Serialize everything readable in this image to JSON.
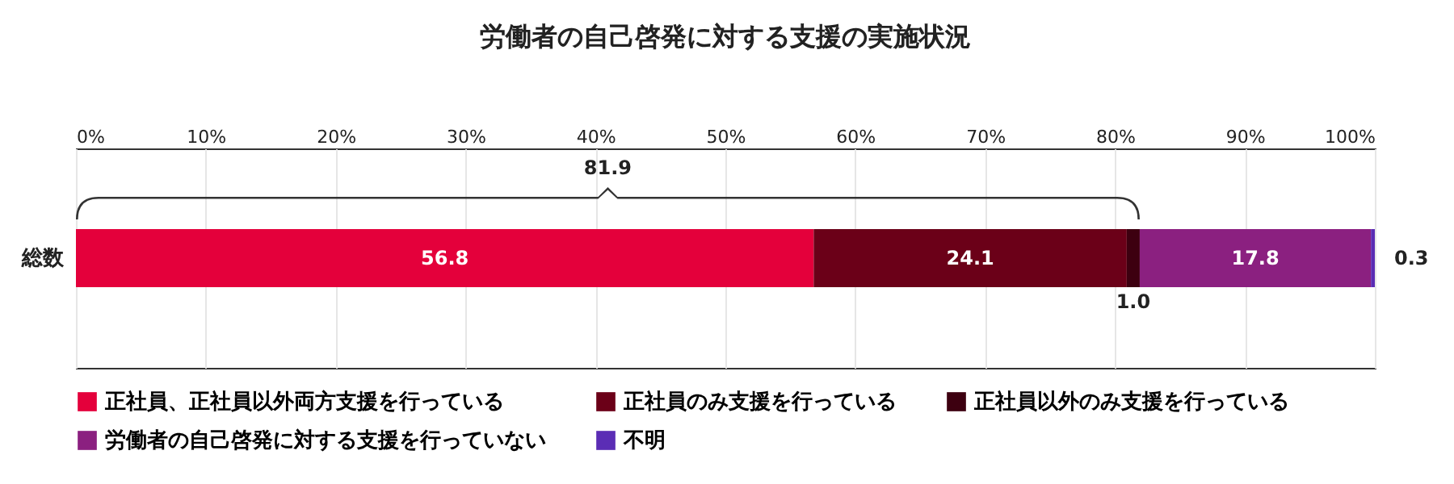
{
  "chart_data": {
    "type": "bar",
    "title": "労働者の自己啓発に対する支援の実施状況",
    "orientation": "horizontal",
    "stacked": true,
    "categories": [
      "総数"
    ],
    "series": [
      {
        "name": "正社員、正社員以外両方支援を行っている",
        "color": "#e4003b",
        "values": [
          56.8
        ],
        "value_labels": [
          "56.8"
        ]
      },
      {
        "name": "正社員のみ支援を行っている",
        "color": "#6b0018",
        "values": [
          24.1
        ],
        "value_labels": [
          "24.1"
        ]
      },
      {
        "name": "正社員以外のみ支援を行っている",
        "color": "#3d0010",
        "values": [
          1.0
        ],
        "value_labels": [
          "1.0"
        ]
      },
      {
        "name": "労働者の自己啓発に対する支援を行っていない",
        "color": "#8b2080",
        "values": [
          17.8
        ],
        "value_labels": [
          "17.8"
        ]
      },
      {
        "name": "不明",
        "color": "#5b2db5",
        "values": [
          0.3
        ],
        "value_labels": [
          "0.3"
        ]
      }
    ],
    "xlim": [
      0,
      100
    ],
    "xticks": [
      {
        "value": 0,
        "label": "0%"
      },
      {
        "value": 10,
        "label": "10%"
      },
      {
        "value": 20,
        "label": "20%"
      },
      {
        "value": 30,
        "label": "30%"
      },
      {
        "value": 40,
        "label": "40%"
      },
      {
        "value": 50,
        "label": "50%"
      },
      {
        "value": 60,
        "label": "60%"
      },
      {
        "value": 70,
        "label": "70%"
      },
      {
        "value": 80,
        "label": "80%"
      },
      {
        "value": 90,
        "label": "90%"
      },
      {
        "value": 100,
        "label": "100%"
      }
    ],
    "annotations": [
      "81.9"
    ],
    "grid": true,
    "legend": "bottom"
  }
}
